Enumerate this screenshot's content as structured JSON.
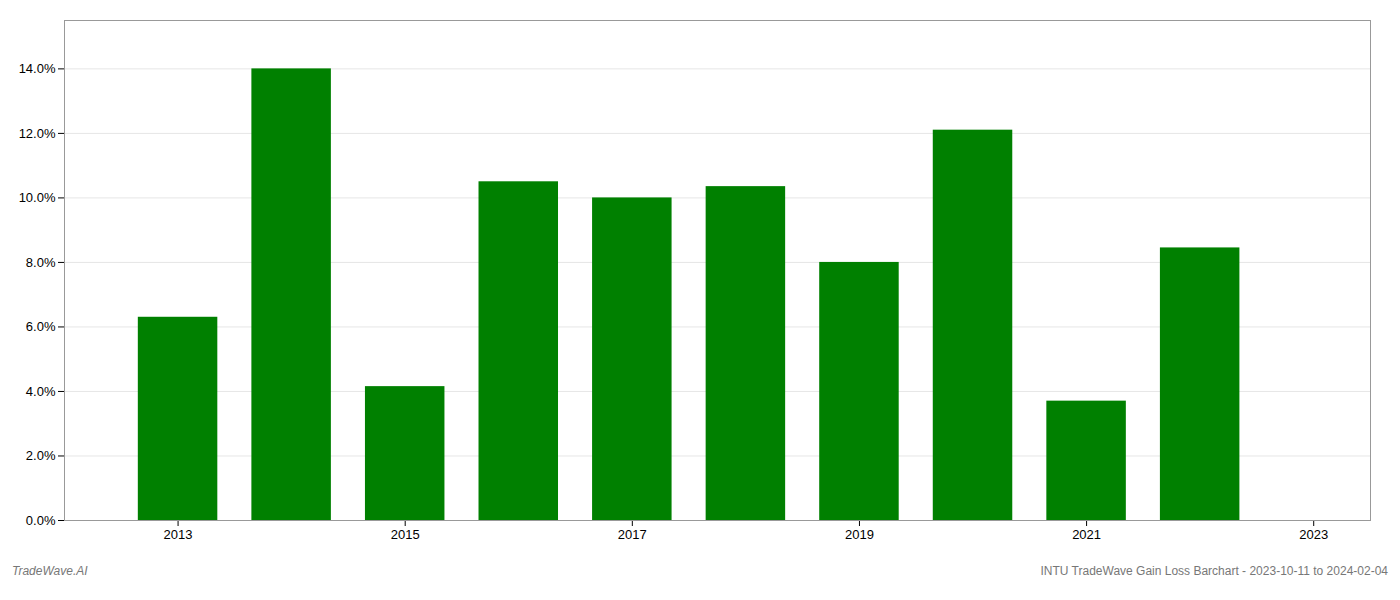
{
  "chart_data": {
    "type": "bar",
    "x": [
      2013,
      2014,
      2015,
      2016,
      2017,
      2018,
      2019,
      2020,
      2021,
      2022
    ],
    "values": [
      0.063,
      0.14,
      0.0415,
      0.105,
      0.1,
      0.1035,
      0.08,
      0.121,
      0.037,
      0.0845
    ],
    "color": "#008000",
    "xlim": [
      2012.0,
      2023.5
    ],
    "xticks": [
      2013,
      2015,
      2017,
      2019,
      2021,
      2023
    ],
    "ylim": [
      0,
      0.155
    ],
    "yticks": [
      {
        "value": 0.0,
        "label": "0.0%"
      },
      {
        "value": 0.02,
        "label": "2.0%"
      },
      {
        "value": 0.04,
        "label": "4.0%"
      },
      {
        "value": 0.06,
        "label": "6.0%"
      },
      {
        "value": 0.08,
        "label": "8.0%"
      },
      {
        "value": 0.1,
        "label": "10.0%"
      },
      {
        "value": 0.12,
        "label": "12.0%"
      },
      {
        "value": 0.14,
        "label": "14.0%"
      }
    ],
    "grid": true,
    "annotations": [
      "TradeWave.AI",
      "INTU TradeWave Gain Loss Barchart - 2023-10-11 to 2024-02-04"
    ]
  }
}
